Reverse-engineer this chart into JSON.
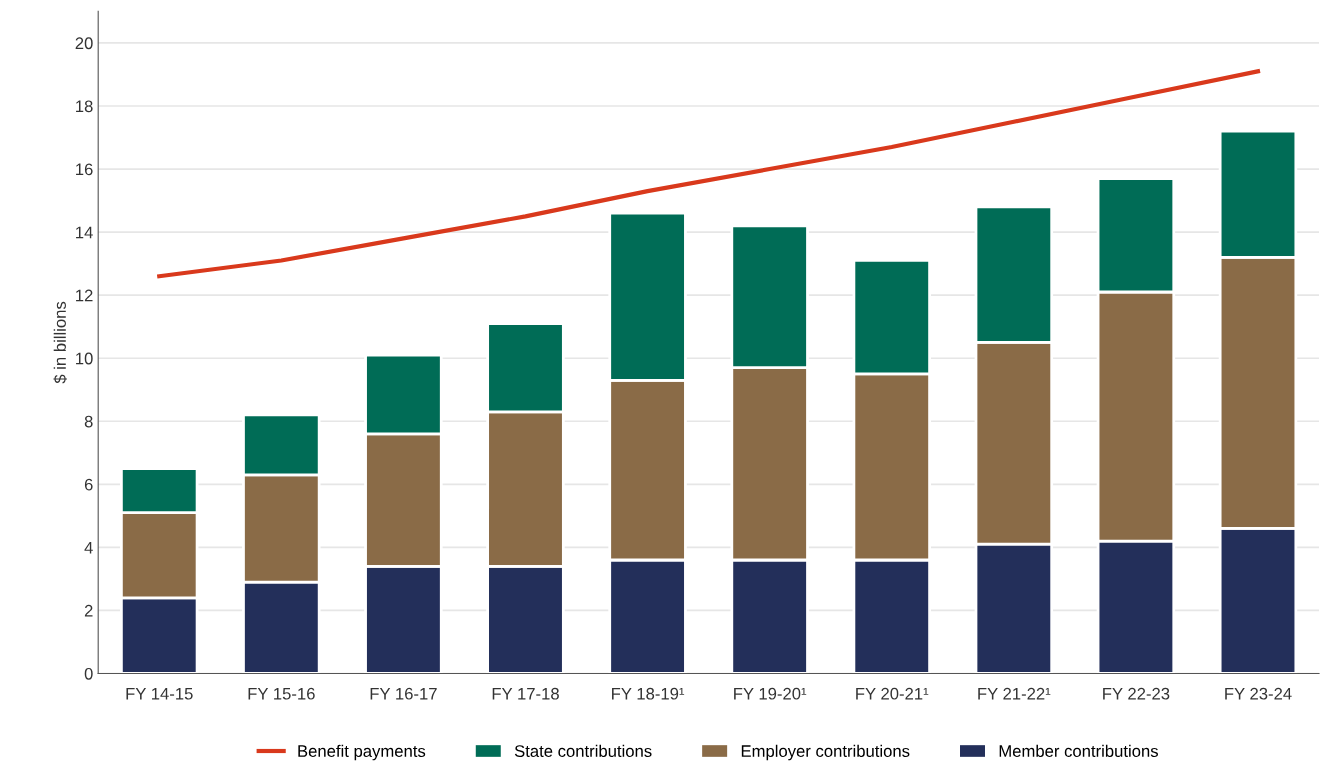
{
  "chart_data": {
    "type": "bar",
    "stacked": true,
    "ylabel": "$ in billions",
    "categories": [
      "FY 14-15",
      "FY 15-16",
      "FY 16-17",
      "FY 17-18",
      "FY 18-19¹",
      "FY 19-20¹",
      "FY 20-21¹",
      "FY 21-22¹",
      "FY 22-23",
      "FY 23-24"
    ],
    "series": [
      {
        "name": "Member contributions",
        "color": "#232f5a",
        "values": [
          2.4,
          2.9,
          3.4,
          3.4,
          3.6,
          3.6,
          3.6,
          4.1,
          4.2,
          4.6
        ]
      },
      {
        "name": "Employer contributions",
        "color": "#8a6b47",
        "values": [
          2.7,
          3.4,
          4.2,
          4.9,
          5.7,
          6.1,
          5.9,
          6.4,
          7.9,
          8.6
        ]
      },
      {
        "name": "State contributions",
        "color": "#006c56",
        "values": [
          1.4,
          1.9,
          2.5,
          2.8,
          5.3,
          4.5,
          3.6,
          4.3,
          3.6,
          4.0
        ]
      },
      {
        "name": "Benefit payments",
        "type": "line",
        "color": "#d9391c",
        "values": [
          12.6,
          13.1,
          13.8,
          14.5,
          15.3,
          16.0,
          16.7,
          17.5,
          18.3,
          19.1
        ]
      }
    ],
    "ylim": [
      0,
      21
    ],
    "yticks": [
      0,
      2,
      4,
      6,
      8,
      10,
      12,
      14,
      16,
      18,
      20
    ],
    "grid": "y",
    "legend": "bottom"
  }
}
